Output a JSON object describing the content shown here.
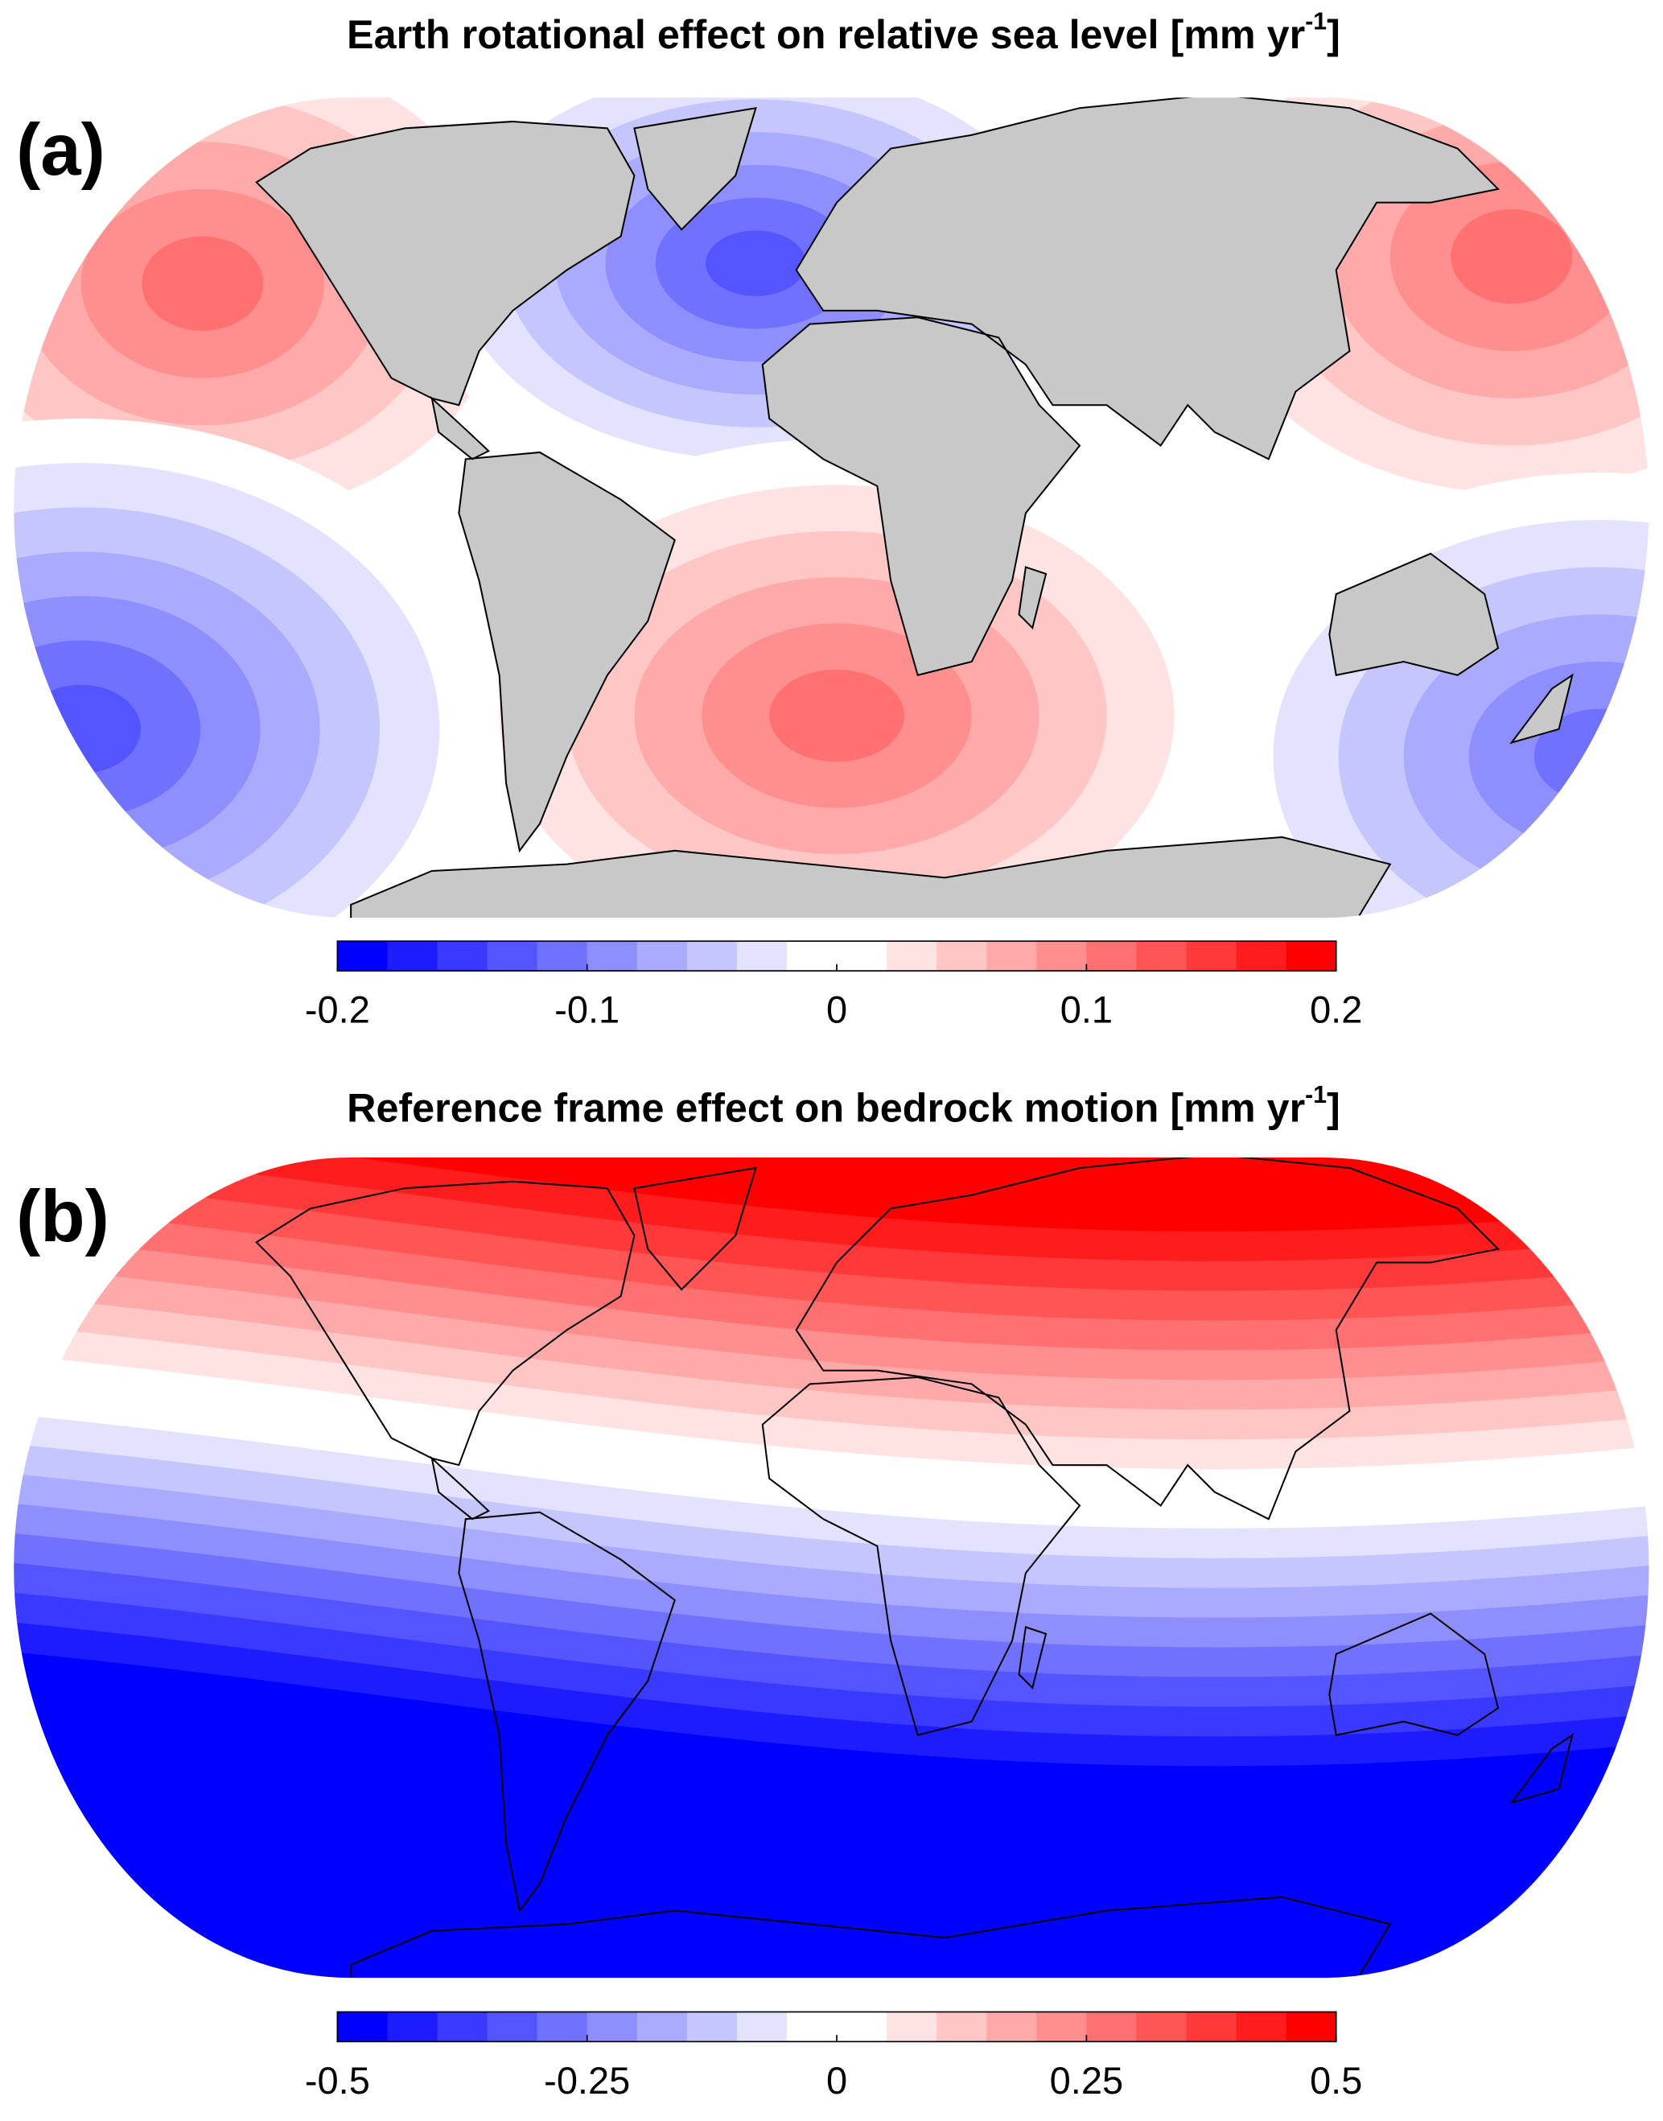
{
  "panels": [
    {
      "label": "(a)",
      "title": {
        "text": "Earth rotational effect on relative sea level [mm yr",
        "superscript": "-1",
        "suffix": "]"
      },
      "colorbar": {
        "lim": [
          -0.2,
          0.2
        ],
        "ticks": [
          -0.2,
          -0.1,
          0,
          0.1,
          0.2
        ],
        "levels": 20,
        "colors": [
          "#0000ff",
          "#ffffff",
          "#ff0000"
        ]
      },
      "land_fill": "#c8c8c8"
    },
    {
      "label": "(b)",
      "title": {
        "text": "Reference frame effect on bedrock motion [mm yr",
        "superscript": "-1",
        "suffix": "]"
      },
      "colorbar": {
        "lim": [
          -0.5,
          0.5
        ],
        "ticks": [
          -0.5,
          -0.25,
          0,
          0.25,
          0.5
        ],
        "levels": 20,
        "colors": [
          "#0000ff",
          "#ffffff",
          "#ff0000"
        ]
      },
      "land_fill": "none"
    }
  ]
}
